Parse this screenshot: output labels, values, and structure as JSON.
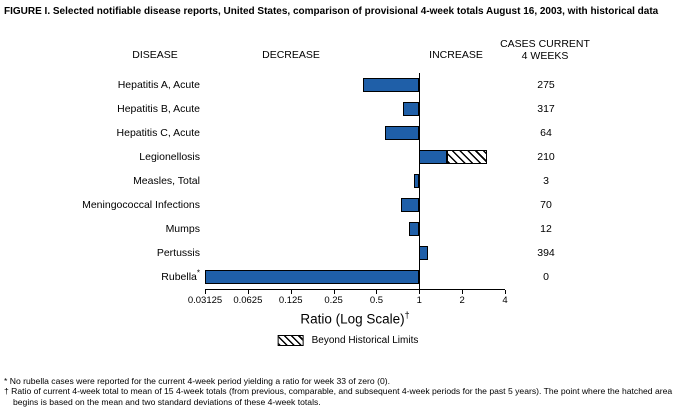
{
  "title": "FIGURE I. Selected notifiable disease reports, United States, comparison of provisional 4-week totals August 16, 2003, with historical data",
  "headers": {
    "disease": "DISEASE",
    "decrease": "DECREASE",
    "increase": "INCREASE",
    "cases_line1": "CASES CURRENT",
    "cases_line2": "4 WEEKS"
  },
  "chart_data": {
    "type": "bar",
    "orientation": "horizontal",
    "x_scale": "log2",
    "x_range": [
      0.03125,
      4
    ],
    "x_ticks": [
      0.03125,
      0.0625,
      0.125,
      0.25,
      0.5,
      1,
      2,
      4
    ],
    "baseline": 1,
    "xlabel": "Ratio (Log Scale)",
    "xlabel_sup": "†",
    "legend": {
      "label": "Beyond Historical Limits",
      "pattern": "hatched"
    },
    "series": [
      {
        "disease": "Hepatitis A, Acute",
        "cases": 275,
        "ratio": 0.4,
        "beyond_limit": null
      },
      {
        "disease": "Hepatitis B, Acute",
        "cases": 317,
        "ratio": 0.77,
        "beyond_limit": null
      },
      {
        "disease": "Hepatitis C, Acute",
        "cases": 64,
        "ratio": 0.57,
        "beyond_limit": null
      },
      {
        "disease": "Legionellosis",
        "cases": 210,
        "ratio": 3.0,
        "beyond_limit": 1.57
      },
      {
        "disease": "Measles, Total",
        "cases": 3,
        "ratio": 0.92,
        "beyond_limit": null
      },
      {
        "disease": "Meningococcal Infections",
        "cases": 70,
        "ratio": 0.74,
        "beyond_limit": null
      },
      {
        "disease": "Mumps",
        "cases": 12,
        "ratio": 0.84,
        "beyond_limit": null
      },
      {
        "disease": "Pertussis",
        "cases": 394,
        "ratio": 1.16,
        "beyond_limit": null
      },
      {
        "disease": "Rubella",
        "cases": 0,
        "ratio": 0.03125,
        "beyond_limit": null,
        "footnote_marker": "*"
      }
    ]
  },
  "footnotes": [
    {
      "marker": "*",
      "text": "No rubella cases were reported for the current 4-week period yielding a ratio for week 33 of zero (0)."
    },
    {
      "marker": "†",
      "text": "Ratio of current 4-week total to mean of 15 4-week totals (from previous, comparable, and subsequent 4-week periods for the past 5 years). The point where the hatched area begins is based on the mean and two standard deviations of these 4-week totals."
    }
  ],
  "colors": {
    "bar_fill": "#1f5fa8",
    "bar_border": "#000000",
    "hatch": "#000000"
  }
}
